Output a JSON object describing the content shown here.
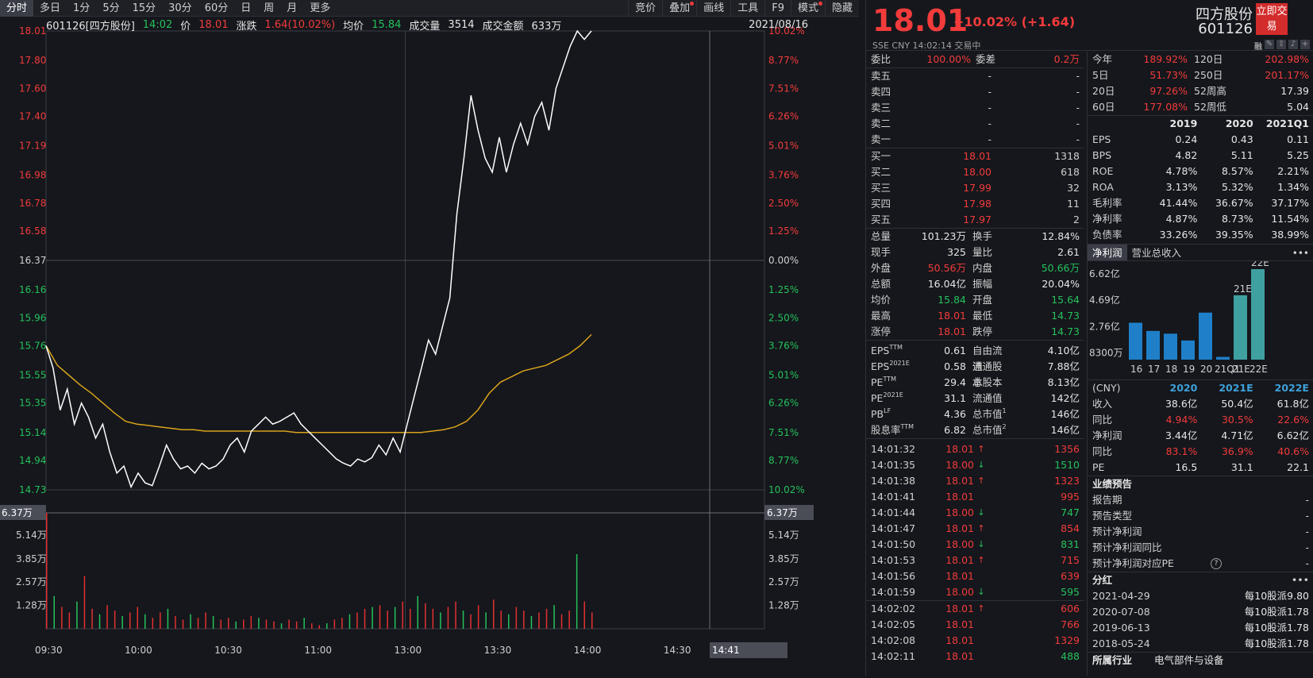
{
  "toolbar": {
    "tabs": [
      "分时",
      "多日",
      "1分",
      "5分",
      "15分",
      "30分",
      "60分",
      "日",
      "周",
      "月",
      "更多"
    ],
    "right_tabs": [
      "竞价",
      "叠加",
      "画线",
      "工具",
      "F9",
      "模式",
      "隐藏"
    ]
  },
  "info": {
    "code_name": "601126[四方股份]",
    "time": "14:02",
    "price_label": "价",
    "price": "18.01",
    "change_label": "涨跌",
    "change": "1.64(10.02%)",
    "avg_label": "均价",
    "avg": "15.84",
    "vol_label": "成交量",
    "vol": "3514",
    "amount_label": "成交金额",
    "amount": "633万",
    "date": "2021/08/16"
  },
  "chart_data": {
    "type": "line",
    "title": "",
    "xlabel": "",
    "ylabel": "",
    "prev_close": 16.37,
    "ylim": [
      14.73,
      18.01
    ],
    "y_ticks_left": [
      "18.01",
      "17.80",
      "17.60",
      "17.40",
      "17.19",
      "16.98",
      "16.78",
      "16.58",
      "16.37",
      "16.16",
      "15.96",
      "15.76",
      "15.55",
      "15.35",
      "15.14",
      "14.94",
      "14.73"
    ],
    "y_ticks_right": [
      "10.02%",
      "8.77%",
      "7.51%",
      "6.26%",
      "5.01%",
      "3.76%",
      "2.50%",
      "1.25%",
      "0.00%",
      "1.25%",
      "2.50%",
      "3.76%",
      "5.01%",
      "6.26%",
      "7.51%",
      "8.77%",
      "10.02%"
    ],
    "x_ticks": [
      "09:30",
      "10:00",
      "10:30",
      "11:00",
      "13:00",
      "13:30",
      "14:00",
      "14:30"
    ],
    "crosshair_time": "14:41",
    "crosshair_value": "6.37万",
    "vol_ticks": [
      "6.37万",
      "5.14万",
      "3.85万",
      "2.57万",
      "1.28万"
    ],
    "price_series": [
      15.76,
      15.6,
      15.3,
      15.45,
      15.2,
      15.35,
      15.25,
      15.1,
      15.2,
      15.0,
      14.85,
      14.9,
      14.75,
      14.85,
      14.78,
      14.76,
      14.9,
      15.05,
      14.95,
      14.88,
      14.9,
      14.85,
      14.92,
      14.88,
      14.9,
      14.95,
      15.05,
      15.1,
      15.0,
      15.15,
      15.2,
      15.25,
      15.2,
      15.22,
      15.25,
      15.28,
      15.2,
      15.15,
      15.1,
      15.05,
      15.0,
      14.95,
      14.92,
      14.9,
      14.95,
      14.93,
      14.96,
      15.05,
      14.98,
      15.1,
      15.0,
      15.2,
      15.4,
      15.6,
      15.8,
      15.7,
      15.9,
      16.1,
      16.7,
      17.1,
      17.55,
      17.3,
      17.1,
      17.0,
      17.25,
      17.0,
      17.2,
      17.35,
      17.2,
      17.4,
      17.5,
      17.3,
      17.6,
      17.75,
      17.9,
      18.01,
      17.95,
      18.01
    ],
    "avg_series": [
      15.76,
      15.62,
      15.55,
      15.48,
      15.42,
      15.35,
      15.28,
      15.22,
      15.2,
      15.19,
      15.18,
      15.17,
      15.16,
      15.16,
      15.15,
      15.15,
      15.15,
      15.15,
      15.15,
      15.15,
      15.15,
      15.15,
      15.14,
      15.14,
      15.14,
      15.14,
      15.14,
      15.14,
      15.14,
      15.14,
      15.14,
      15.14,
      15.14,
      15.14,
      15.15,
      15.16,
      15.18,
      15.22,
      15.3,
      15.42,
      15.5,
      15.54,
      15.58,
      15.6,
      15.62,
      15.66,
      15.7,
      15.76,
      15.84
    ],
    "volume_series": [
      6.37,
      1.8,
      1.2,
      0.9,
      1.5,
      2.9,
      1.1,
      0.8,
      1.3,
      1.0,
      0.7,
      0.9,
      1.2,
      0.8,
      0.6,
      0.9,
      1.1,
      0.7,
      0.5,
      0.8,
      0.6,
      0.9,
      0.7,
      0.5,
      0.6,
      0.4,
      0.5,
      0.7,
      0.6,
      0.5,
      0.4,
      0.3,
      0.5,
      0.4,
      0.6,
      0.3,
      0.2,
      0.3,
      0.5,
      0.6,
      0.8,
      0.9,
      1.1,
      1.2,
      1.3,
      1.0,
      1.2,
      1.5,
      1.1,
      1.8,
      1.4,
      1.1,
      0.9,
      1.2,
      1.5,
      1.0,
      0.8,
      1.3,
      0.9,
      1.6,
      1.0,
      0.8,
      1.2,
      1.0,
      0.7,
      0.9,
      1.1,
      1.3,
      0.8,
      1.0,
      4.1,
      1.5,
      0.9
    ]
  },
  "quote": {
    "price": "18.01",
    "change": "+10.02% (+1.64)",
    "sub": "SSE  CNY  14:02:14  交易中",
    "name": "四方股份",
    "code": "601126",
    "trade_btn": "立即交易",
    "rong": "融"
  },
  "orderbook": {
    "wb_label": "委比",
    "wb": "100.00%",
    "wc_label": "委差",
    "wc": "0.2万",
    "asks": [
      {
        "l": "卖五",
        "p": "-",
        "v": "-"
      },
      {
        "l": "卖四",
        "p": "-",
        "v": "-"
      },
      {
        "l": "卖三",
        "p": "-",
        "v": "-"
      },
      {
        "l": "卖二",
        "p": "-",
        "v": "-"
      },
      {
        "l": "卖一",
        "p": "-",
        "v": "-"
      }
    ],
    "bids": [
      {
        "l": "买一",
        "p": "18.01",
        "v": "1318"
      },
      {
        "l": "买二",
        "p": "18.00",
        "v": "618"
      },
      {
        "l": "买三",
        "p": "17.99",
        "v": "32"
      },
      {
        "l": "买四",
        "p": "17.98",
        "v": "11"
      },
      {
        "l": "买五",
        "p": "17.97",
        "v": "2"
      }
    ]
  },
  "stats": [
    {
      "a": "总量",
      "b": "101.23万",
      "bc": "white",
      "c": "换手",
      "d": "12.84%",
      "dc": "white"
    },
    {
      "a": "现手",
      "b": "325",
      "bc": "white",
      "c": "量比",
      "d": "2.61",
      "dc": "white"
    },
    {
      "a": "外盘",
      "b": "50.56万",
      "bc": "red",
      "c": "内盘",
      "d": "50.66万",
      "dc": "green"
    },
    {
      "a": "总额",
      "b": "16.04亿",
      "bc": "white",
      "c": "振幅",
      "d": "20.04%",
      "dc": "white"
    },
    {
      "a": "均价",
      "b": "15.84",
      "bc": "green",
      "c": "开盘",
      "d": "15.64",
      "dc": "green"
    },
    {
      "a": "最高",
      "b": "18.01",
      "bc": "red",
      "c": "最低",
      "d": "14.73",
      "dc": "green"
    },
    {
      "a": "涨停",
      "b": "18.01",
      "bc": "red",
      "c": "跌停",
      "d": "14.73",
      "dc": "green"
    }
  ],
  "valuation": [
    {
      "a": "EPS",
      "s": "TTM",
      "b": "0.61",
      "c": "自由流通",
      "d": "4.10亿"
    },
    {
      "a": "EPS",
      "s": "2021E",
      "b": "0.58",
      "c": "流通股本",
      "d": "7.88亿"
    },
    {
      "a": "PE",
      "s": "TTM",
      "b": "29.4",
      "c": "总股本",
      "d": "8.13亿"
    },
    {
      "a": "PE",
      "s": "2021E",
      "b": "31.1",
      "c": "流通值",
      "d": "142亿"
    },
    {
      "a": "PB",
      "s": "LF",
      "b": "4.36",
      "c": "总市值",
      "cs": "1",
      "d": "146亿"
    },
    {
      "a": "股息率",
      "s": "TTM",
      "b": "6.82",
      "c": "总市值",
      "cs": "2",
      "d": "146亿"
    }
  ],
  "ticks": [
    {
      "t": "14:01:32",
      "p": "18.01",
      "dir": "up",
      "v": "1356",
      "vc": "red"
    },
    {
      "t": "14:01:35",
      "p": "18.00",
      "dir": "down",
      "v": "1510",
      "vc": "green"
    },
    {
      "t": "14:01:38",
      "p": "18.01",
      "dir": "up",
      "v": "1323",
      "vc": "red"
    },
    {
      "t": "14:01:41",
      "p": "18.01",
      "dir": "",
      "v": "995",
      "vc": "red"
    },
    {
      "t": "14:01:44",
      "p": "18.00",
      "dir": "down",
      "v": "747",
      "vc": "green"
    },
    {
      "t": "14:01:47",
      "p": "18.01",
      "dir": "up",
      "v": "854",
      "vc": "red"
    },
    {
      "t": "14:01:50",
      "p": "18.00",
      "dir": "down",
      "v": "831",
      "vc": "green"
    },
    {
      "t": "14:01:53",
      "p": "18.01",
      "dir": "up",
      "v": "715",
      "vc": "red"
    },
    {
      "t": "14:01:56",
      "p": "18.01",
      "dir": "",
      "v": "639",
      "vc": "red"
    },
    {
      "t": "14:01:59",
      "p": "18.00",
      "dir": "down",
      "v": "595",
      "vc": "green"
    },
    {
      "t": "14:02:02",
      "p": "18.01",
      "dir": "up",
      "v": "606",
      "vc": "red"
    },
    {
      "t": "14:02:05",
      "p": "18.01",
      "dir": "",
      "v": "766",
      "vc": "red"
    },
    {
      "t": "14:02:08",
      "p": "18.01",
      "dir": "",
      "v": "1329",
      "vc": "red"
    },
    {
      "t": "14:02:11",
      "p": "18.01",
      "dir": "",
      "v": "488",
      "vc": "green"
    }
  ],
  "performance": [
    {
      "a": "今年",
      "b": "189.92%",
      "c": "120日",
      "d": "202.98%",
      "dc": "red"
    },
    {
      "a": "5日",
      "b": "51.73%",
      "c": "250日",
      "d": "201.17%",
      "dc": "red"
    },
    {
      "a": "20日",
      "b": "97.26%",
      "c": "52周高",
      "d": "17.39",
      "dc": "white"
    },
    {
      "a": "60日",
      "b": "177.08%",
      "c": "52周低",
      "d": "5.04",
      "dc": "white"
    }
  ],
  "fin_header": [
    "2019",
    "2020",
    "2021Q1"
  ],
  "fin_rows": [
    {
      "k": "EPS",
      "v": [
        "0.24",
        "0.43",
        "0.11"
      ]
    },
    {
      "k": "BPS",
      "v": [
        "4.82",
        "5.11",
        "5.25"
      ]
    },
    {
      "k": "ROE",
      "v": [
        "4.78%",
        "8.57%",
        "2.21%"
      ]
    },
    {
      "k": "ROA",
      "v": [
        "3.13%",
        "5.32%",
        "1.34%"
      ]
    },
    {
      "k": "毛利率",
      "v": [
        "41.44%",
        "36.67%",
        "37.17%"
      ]
    },
    {
      "k": "净利率",
      "v": [
        "4.87%",
        "8.73%",
        "11.54%"
      ]
    },
    {
      "k": "负债率",
      "v": [
        "33.26%",
        "39.35%",
        "38.99%"
      ]
    }
  ],
  "profit_tabs": [
    "净利润",
    "营业总收入"
  ],
  "profit_chart": {
    "type": "bar",
    "y_ticks": [
      "6.62亿",
      "4.69亿",
      "2.76亿",
      "8300万"
    ],
    "categories": [
      "16",
      "17",
      "18",
      "19",
      "20",
      "21Q1",
      "21E",
      "22E"
    ],
    "values": [
      2.7,
      2.1,
      1.9,
      1.4,
      3.44,
      0.2,
      4.71,
      6.62
    ],
    "labels": [
      "21E",
      "22E"
    ]
  },
  "forecast_header": [
    "(CNY)",
    "2020",
    "2021E",
    "2022E"
  ],
  "forecast_rows": [
    {
      "k": "收入",
      "v": [
        "38.6亿",
        "50.4亿",
        "61.8亿"
      ],
      "c": "white"
    },
    {
      "k": "同比",
      "v": [
        "4.94%",
        "30.5%",
        "22.6%"
      ],
      "c": "red"
    },
    {
      "k": "净利润",
      "v": [
        "3.44亿",
        "4.71亿",
        "6.62亿"
      ],
      "c": "white"
    },
    {
      "k": "同比",
      "v": [
        "83.1%",
        "36.9%",
        "40.6%"
      ],
      "c": "red"
    },
    {
      "k": "PE",
      "v": [
        "16.5",
        "31.1",
        "22.1"
      ],
      "c": "white"
    }
  ],
  "preview": {
    "title": "业绩预告",
    "rows": [
      {
        "k": "报告期",
        "v": "-"
      },
      {
        "k": "预告类型",
        "v": "-"
      },
      {
        "k": "预计净利润",
        "v": "-"
      },
      {
        "k": "预计净利润同比",
        "v": "-"
      },
      {
        "k": "预计净利润对应PE",
        "v": "-"
      }
    ]
  },
  "dividend": {
    "title": "分红",
    "rows": [
      {
        "d": "2021-04-29",
        "v": "每10股派9.80"
      },
      {
        "d": "2020-07-08",
        "v": "每10股派1.78"
      },
      {
        "d": "2019-06-13",
        "v": "每10股派1.78"
      },
      {
        "d": "2018-05-24",
        "v": "每10股派1.78"
      }
    ]
  },
  "industry": {
    "label": "所属行业",
    "value": "电气部件与设备"
  }
}
